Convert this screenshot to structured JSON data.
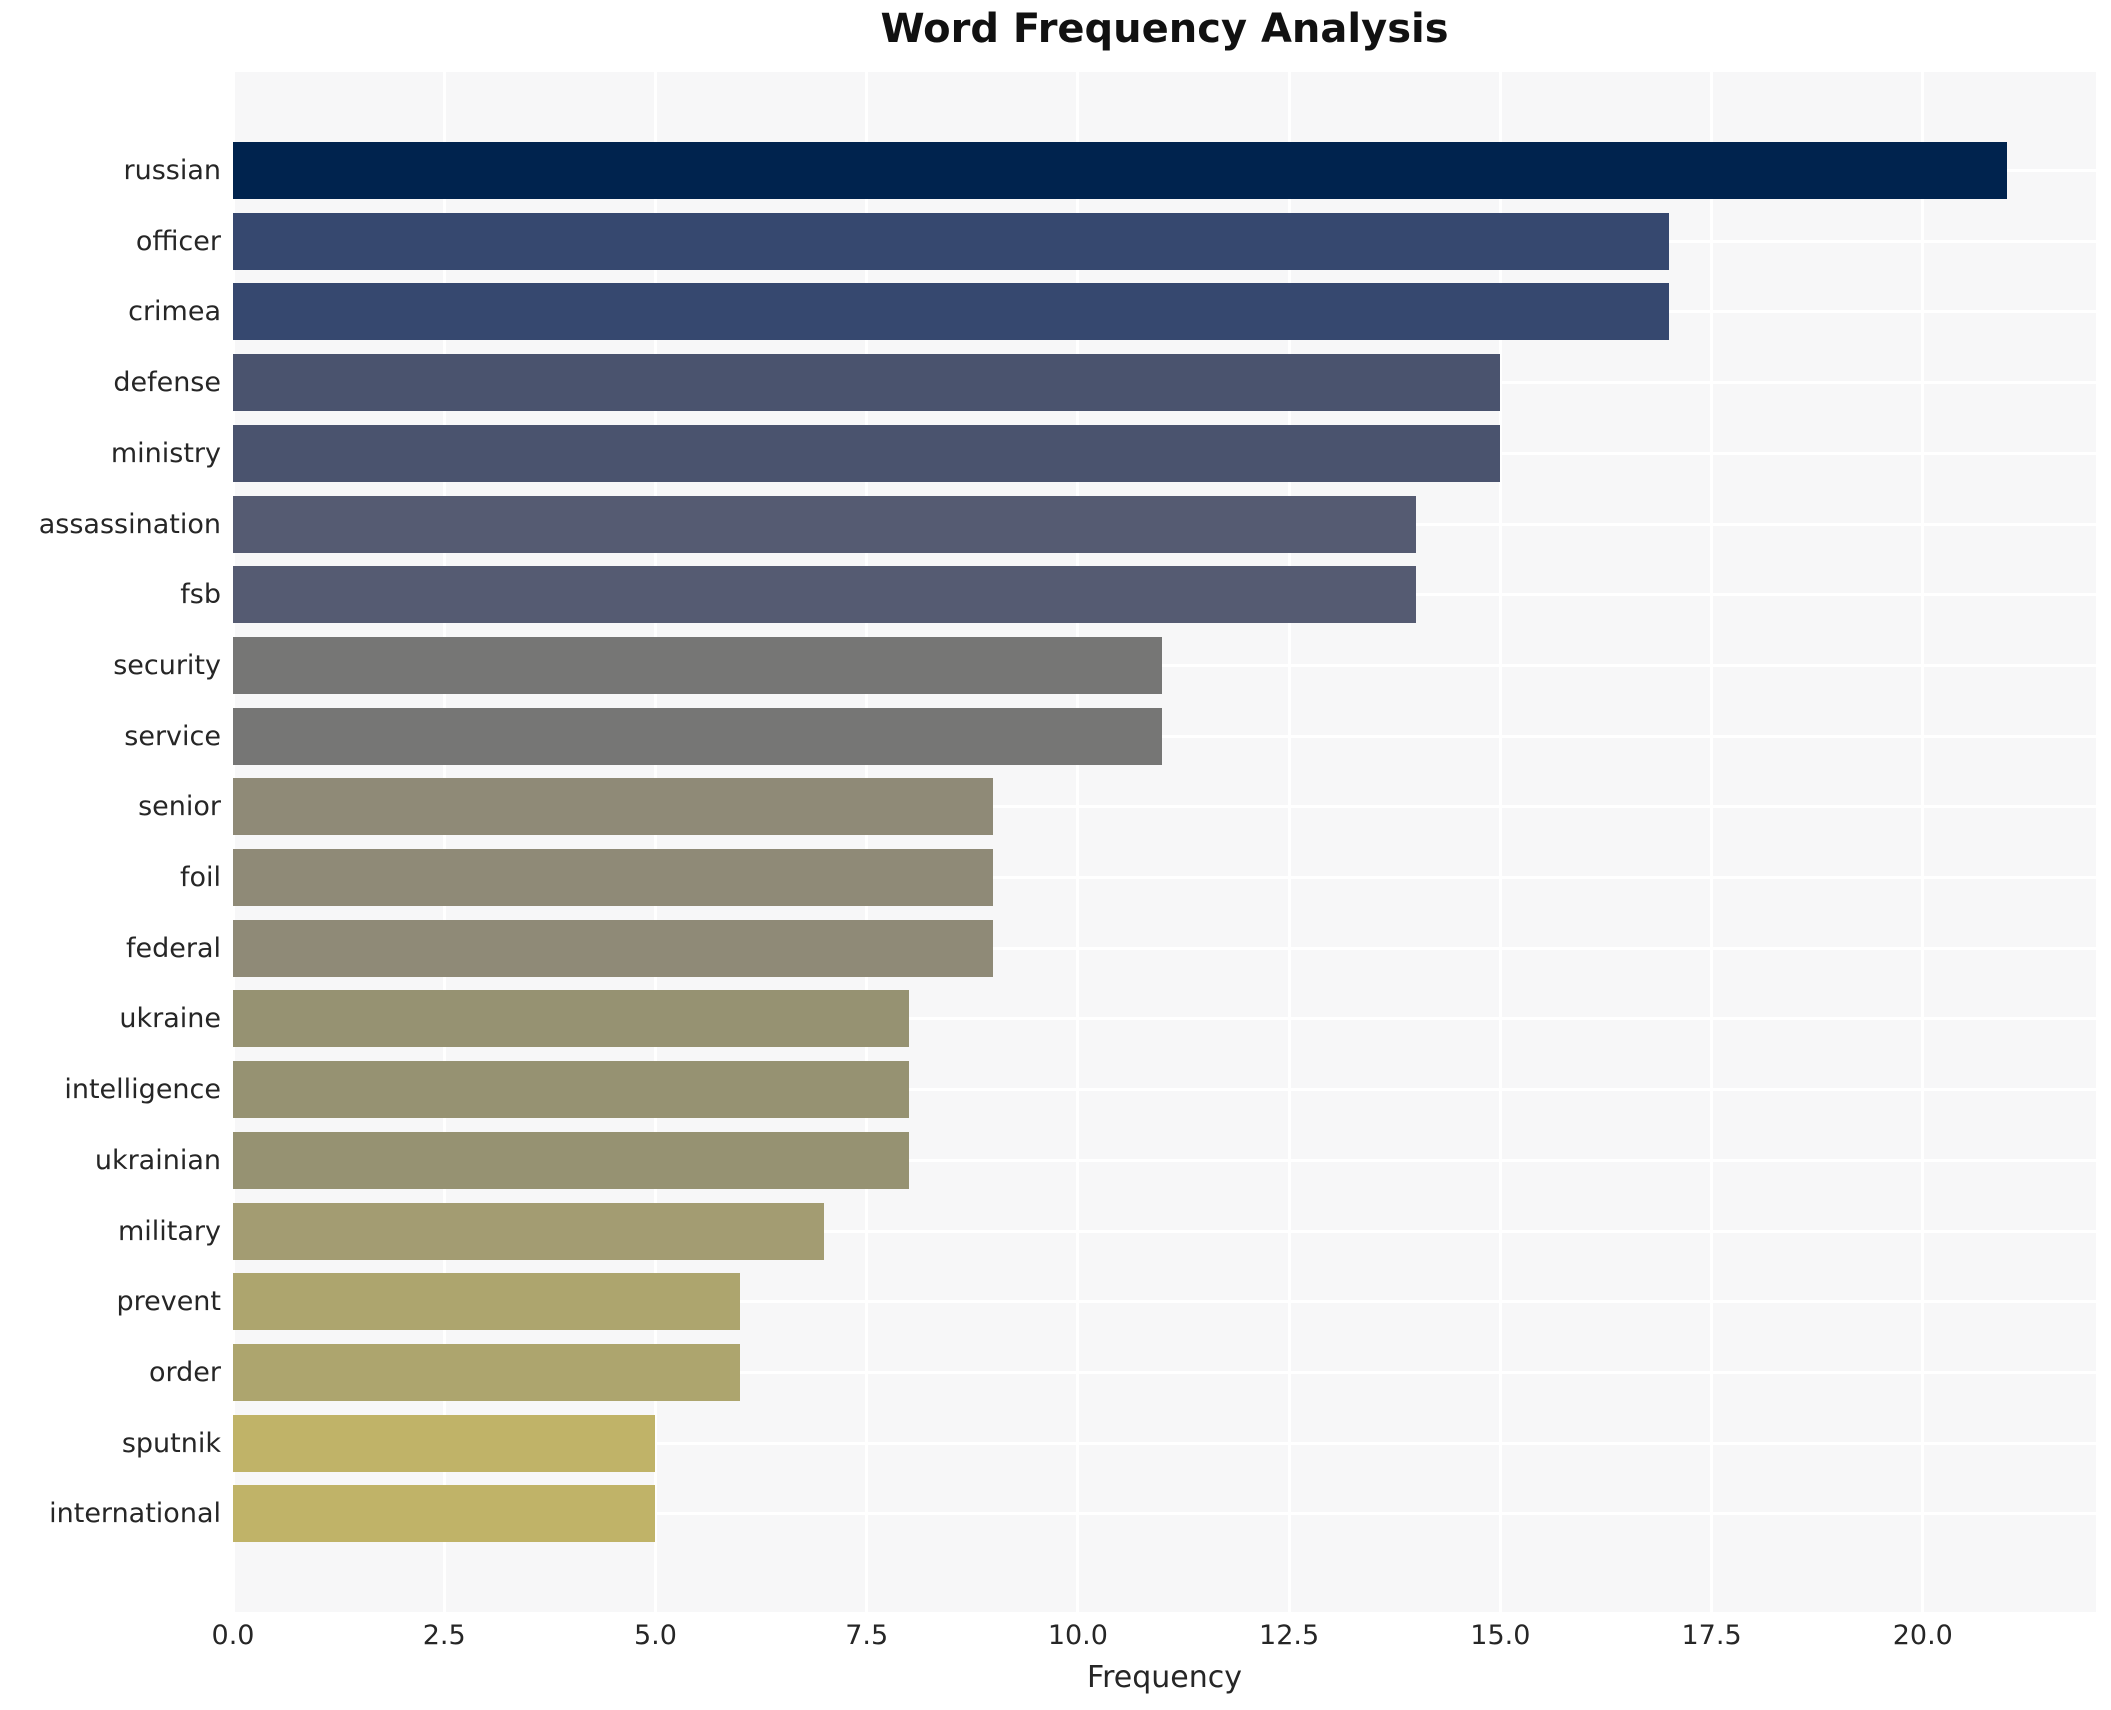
{
  "chart_data": {
    "type": "bar",
    "orientation": "horizontal",
    "title": "Word Frequency Analysis",
    "xlabel": "Frequency",
    "ylabel": "",
    "categories": [
      "russian",
      "officer",
      "crimea",
      "defense",
      "ministry",
      "assassination",
      "fsb",
      "security",
      "service",
      "senior",
      "foil",
      "federal",
      "ukraine",
      "intelligence",
      "ukrainian",
      "military",
      "prevent",
      "order",
      "sputnik",
      "international"
    ],
    "values": [
      21,
      17,
      17,
      15,
      15,
      14,
      14,
      11,
      11,
      9,
      9,
      9,
      8,
      8,
      8,
      7,
      6,
      6,
      5,
      5
    ],
    "bar_colors": [
      "#00234e",
      "#36486f",
      "#36486f",
      "#4a536e",
      "#4a536e",
      "#555b72",
      "#555b72",
      "#767675",
      "#767675",
      "#8f8a77",
      "#8f8a77",
      "#8f8a77",
      "#969272",
      "#969272",
      "#969272",
      "#a39c72",
      "#ada56e",
      "#ada56e",
      "#c0b368",
      "#c0b368"
    ],
    "x_ticks": [
      "0.0",
      "2.5",
      "5.0",
      "7.5",
      "10.0",
      "12.5",
      "15.0",
      "17.5",
      "20.0"
    ],
    "x_tick_values": [
      0,
      2.5,
      5,
      7.5,
      10,
      12.5,
      15,
      17.5,
      20
    ],
    "xlim": [
      0,
      22.05
    ],
    "grid": true,
    "legend": null,
    "colors": {
      "plot_background": "#f7f7f8",
      "figure_background": "#ffffff",
      "gridline": "#ffffff",
      "text": "#262626",
      "title_text": "#111111"
    }
  }
}
